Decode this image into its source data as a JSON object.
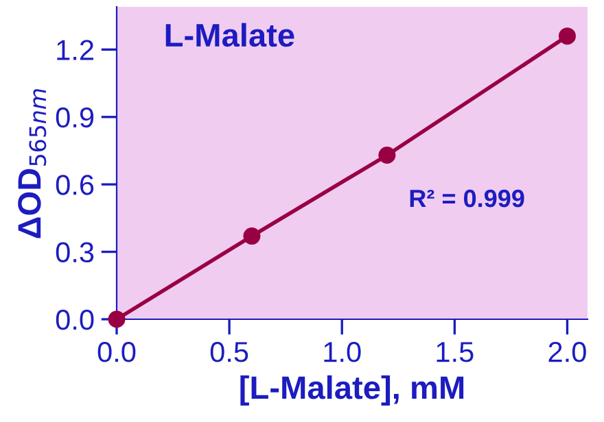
{
  "chart_data": {
    "type": "line",
    "title": "L-Malate",
    "xlabel": "[L-Malate], mM",
    "ylabel": "ΔOD$_{565nm}$",
    "x": [
      0,
      0.6,
      1.2,
      2.0
    ],
    "series": [
      {
        "color": "#990044",
        "values": [
          0,
          0.37,
          0.73,
          1.26
        ]
      }
    ],
    "marker": "circle",
    "line_style": "solid",
    "xlim": [
      0,
      2.09
    ],
    "ylim": [
      0,
      1.39
    ],
    "xticks": [
      {
        "value": 0,
        "label": "0.0"
      },
      0.5,
      {
        "value": 1,
        "label": "1.0"
      },
      1.5,
      {
        "value": 2,
        "label": "2.0"
      }
    ],
    "yticks": [
      {
        "value": 0,
        "label": "0.0"
      },
      0.3,
      0.6,
      0.9,
      1.2
    ],
    "annotations": [
      "R² = 0.999"
    ],
    "grid": false,
    "legend": false
  }
}
